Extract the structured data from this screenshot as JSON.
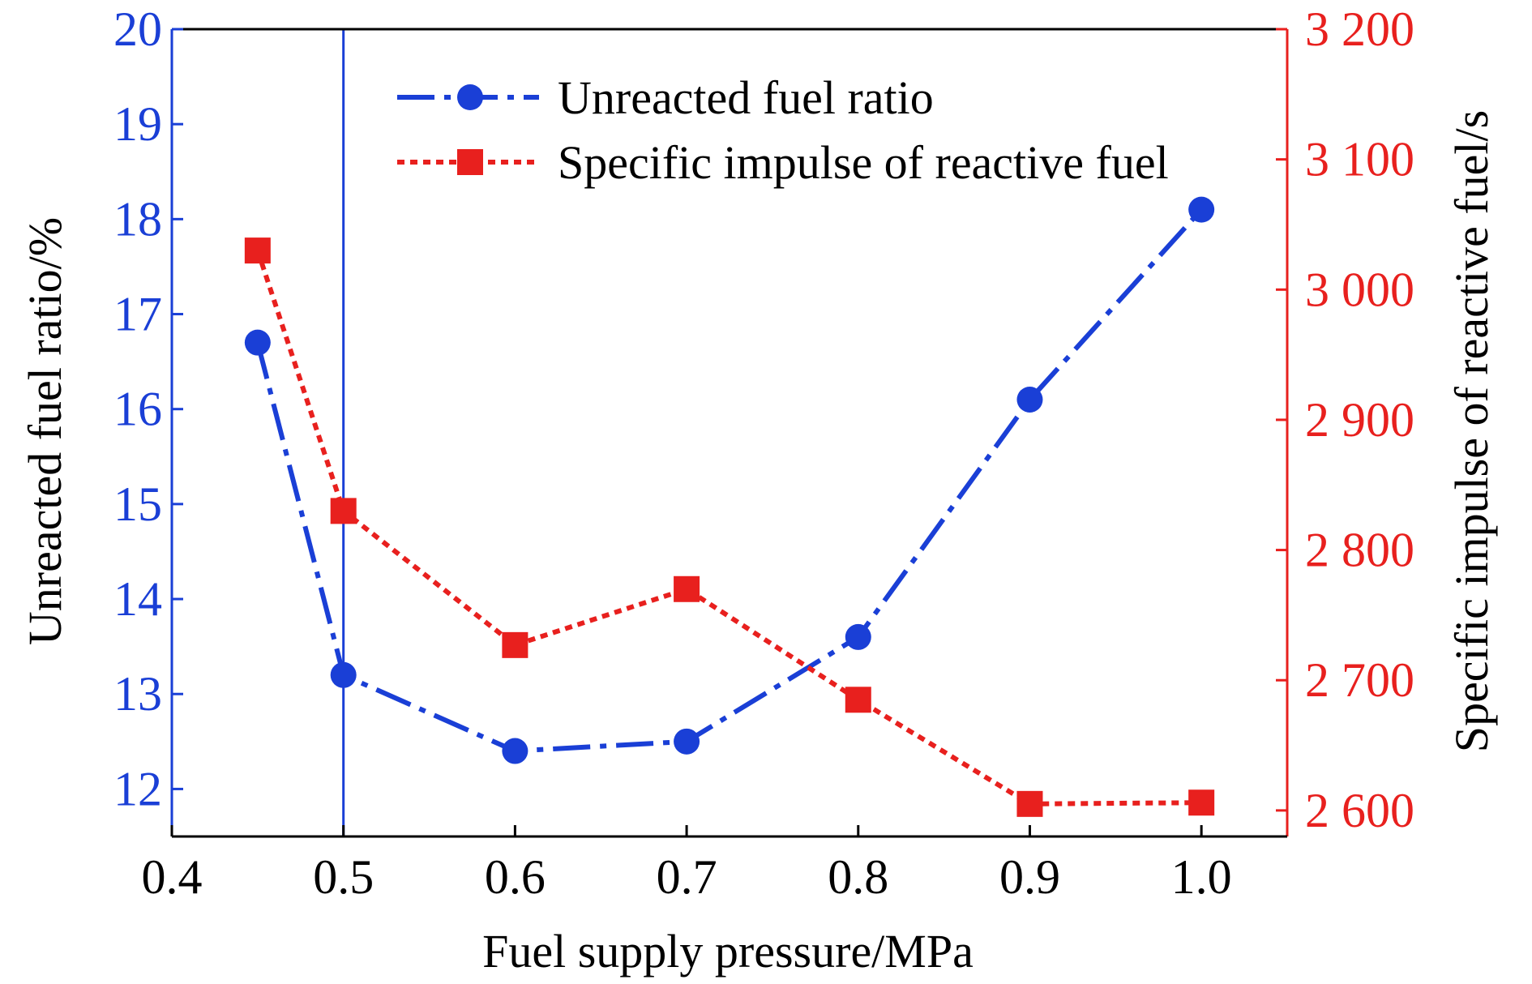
{
  "chart_data": {
    "type": "line",
    "title": "",
    "xlabel": "Fuel supply pressure/MPa",
    "ylabel_left": "Unreacted fuel ratio/%",
    "ylabel_right": "Specific impulse of reactive fuel/s",
    "xlim": [
      0.4,
      1.05
    ],
    "ylim_left": [
      11.5,
      20
    ],
    "ylim_right": [
      2580,
      3200
    ],
    "x_ticks": [
      "0.4",
      "0.5",
      "0.6",
      "0.7",
      "0.8",
      "0.9",
      "1.0"
    ],
    "x_tick_values": [
      0.4,
      0.5,
      0.6,
      0.7,
      0.8,
      0.9,
      1.0
    ],
    "y_left_ticks": [
      "12",
      "13",
      "14",
      "15",
      "16",
      "17",
      "18",
      "19",
      "20"
    ],
    "y_left_tick_values": [
      12,
      13,
      14,
      15,
      16,
      17,
      18,
      19,
      20
    ],
    "y_right_ticks": [
      "2 600",
      "2 700",
      "2 800",
      "2 900",
      "3 000",
      "3 100",
      "3 200"
    ],
    "y_right_tick_values": [
      2600,
      2700,
      2800,
      2900,
      3000,
      3100,
      3200
    ],
    "reference_line_x": 0.5,
    "legend_position": "top-right",
    "grid": false,
    "colors": {
      "left_axis": "#1a3fd6",
      "right_axis": "#e8201e",
      "text": "#000000"
    },
    "series": [
      {
        "name": "Unreacted fuel ratio",
        "axis": "left",
        "color": "#1a3fd6",
        "marker": "circle",
        "line_style": "dash-dot",
        "x": [
          0.45,
          0.5,
          0.6,
          0.7,
          0.8,
          0.9,
          1.0
        ],
        "values": [
          16.7,
          13.2,
          12.4,
          12.5,
          13.6,
          16.1,
          18.1
        ]
      },
      {
        "name": "Specific impulse of reactive fuel",
        "axis": "right",
        "color": "#e8201e",
        "marker": "square",
        "line_style": "dotted",
        "x": [
          0.45,
          0.5,
          0.6,
          0.7,
          0.8,
          0.9,
          1.0
        ],
        "values": [
          3030,
          2830,
          2727,
          2770,
          2685,
          2605,
          2606
        ]
      }
    ]
  }
}
